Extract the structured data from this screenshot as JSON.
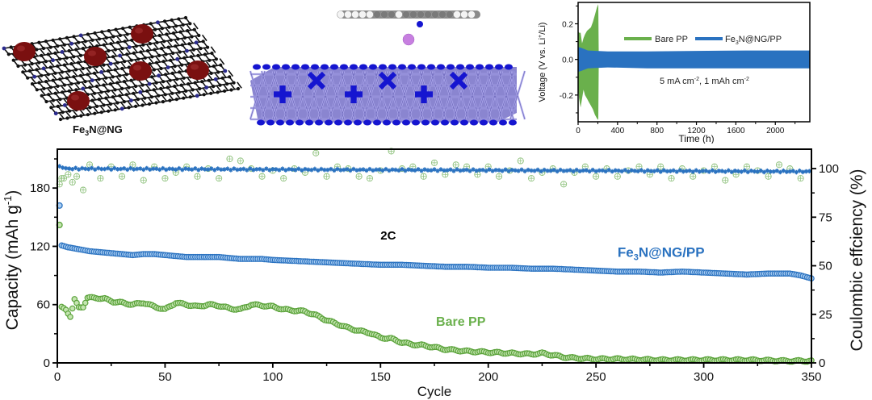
{
  "panels": {
    "left_schematic": {
      "label": "Fe3N@NG",
      "label_main": "Fe",
      "label_sub": "3",
      "label_rest": "N@NG",
      "sheet_color": "#111111",
      "nitrogen_color": "#2b2b8c",
      "particle_color": "#7a1010"
    },
    "middle_schematic": {
      "description": "Li atom between molecule and Fe3N slab",
      "li_color": "#c77fe0",
      "slab_color": "#8a85d0",
      "n_color": "#1515d0"
    }
  },
  "chart_data": [
    {
      "id": "inset",
      "type": "area",
      "title": "",
      "xlabel": "Time (h)",
      "ylabel": "Voltage (V vs. Li+/Li)",
      "ylabel_parts": {
        "pre": "Voltage (V vs. Li",
        "sup": "+",
        "post": "/Li)"
      },
      "xlim": [
        0,
        2350
      ],
      "ylim": [
        -0.35,
        0.32
      ],
      "xticks": [
        0,
        400,
        800,
        1200,
        1600,
        2000
      ],
      "xtick_labels": [
        "0",
        "400",
        "800",
        "1200",
        "1600",
        "2000"
      ],
      "yticks": [
        -0.2,
        0.0,
        0.2
      ],
      "ytick_labels": [
        "-0.2",
        "0.0",
        "0.2"
      ],
      "annotation": {
        "pre": "5 mA cm",
        "sup1": "-2",
        "mid": ", 1 mAh cm",
        "sup2": "-2"
      },
      "legend": {
        "placement": "top-center",
        "entries": [
          {
            "name": "Bare PP",
            "color": "#6ab04c"
          },
          {
            "name": "Fe3N@NG/PP",
            "name_main": "Fe",
            "name_sub": "3",
            "name_rest": "N@NG/PP",
            "color": "#2a72c0"
          }
        ]
      },
      "series": [
        {
          "name": "Bare PP",
          "color": "#6ab04c",
          "x": [
            0,
            10,
            25,
            40,
            55,
            70,
            90,
            110,
            130,
            150,
            170,
            190,
            205,
            210
          ],
          "upper": [
            0.16,
            0.15,
            0.15,
            0.09,
            0.12,
            0.14,
            0.16,
            0.17,
            0.18,
            0.21,
            0.25,
            0.29,
            0.31,
            0.0
          ],
          "lower": [
            -0.16,
            -0.22,
            -0.27,
            -0.22,
            -0.17,
            -0.2,
            -0.22,
            -0.24,
            -0.26,
            -0.28,
            -0.31,
            -0.33,
            -0.34,
            0.0
          ]
        },
        {
          "name": "Fe3N@NG/PP",
          "color": "#2a72c0",
          "x": [
            0,
            30,
            100,
            300,
            700,
            1200,
            1700,
            2350
          ],
          "upper": [
            0.07,
            0.065,
            0.05,
            0.045,
            0.045,
            0.048,
            0.05,
            0.05
          ],
          "lower": [
            -0.07,
            -0.065,
            -0.05,
            -0.045,
            -0.05,
            -0.05,
            -0.05,
            -0.05
          ]
        }
      ]
    },
    {
      "id": "main",
      "type": "scatter",
      "title": "",
      "xlabel": "Cycle",
      "ylabel_left": "Capacity (mAh g-1)",
      "ylabel_left_parts": {
        "pre": "Capacity (mAh g",
        "sup": "-1",
        "post": ")"
      },
      "ylabel_right": "Coulombic effciency (%)",
      "xlim": [
        0,
        350
      ],
      "ylim_left": [
        0,
        220
      ],
      "ylim_right": [
        0,
        110
      ],
      "xticks": [
        0,
        50,
        100,
        150,
        200,
        250,
        300,
        350
      ],
      "xtick_labels": [
        "0",
        "50",
        "100",
        "150",
        "200",
        "250",
        "300",
        "350"
      ],
      "yticks_left": [
        0,
        60,
        120,
        180
      ],
      "ytick_left_labels": [
        "0",
        "60",
        "120",
        "180"
      ],
      "yticks_right": [
        0,
        25,
        50,
        75,
        100
      ],
      "ytick_right_labels": [
        "0",
        "25",
        "50",
        "75",
        "100"
      ],
      "annotations": [
        {
          "text": "2C",
          "x": 150,
          "y": 127,
          "color": "#000000"
        },
        {
          "text": "Fe3N@NG/PP",
          "main": "Fe",
          "sub": "3",
          "rest": "N@NG/PP",
          "x": 290,
          "y": 109,
          "color": "#2a72c0"
        },
        {
          "text": "Bare PP",
          "x": 190,
          "y": 38,
          "color": "#6ab04c"
        }
      ],
      "series": [
        {
          "name": "Fe3N@NG/PP capacity",
          "axis": "left",
          "color": "#2a72c0",
          "marker": "circle",
          "x": [
            1,
            2,
            5,
            10,
            15,
            20,
            25,
            30,
            35,
            40,
            45,
            50,
            55,
            60,
            65,
            70,
            75,
            80,
            85,
            90,
            95,
            100,
            110,
            120,
            130,
            140,
            150,
            160,
            170,
            180,
            190,
            200,
            210,
            220,
            230,
            240,
            250,
            260,
            270,
            280,
            290,
            300,
            310,
            320,
            330,
            340,
            345,
            350
          ],
          "values": [
            162,
            121,
            119,
            117,
            115,
            114,
            113,
            112,
            111,
            112,
            112,
            111,
            110,
            109,
            109,
            109,
            109,
            108,
            107,
            107,
            107,
            106,
            105,
            104,
            103,
            102,
            101,
            101,
            100,
            99,
            99,
            98,
            98,
            97,
            97,
            96,
            95,
            94,
            94,
            93,
            94,
            93,
            92,
            91,
            92,
            92,
            90,
            87
          ]
        },
        {
          "name": "Bare PP capacity",
          "axis": "left",
          "color": "#6ab04c",
          "marker": "circle",
          "x": [
            1,
            2,
            4,
            6,
            7,
            8,
            10,
            12,
            14,
            18,
            22,
            26,
            30,
            35,
            40,
            45,
            50,
            55,
            60,
            65,
            70,
            75,
            80,
            85,
            90,
            95,
            100,
            105,
            110,
            115,
            120,
            125,
            130,
            135,
            140,
            145,
            150,
            155,
            160,
            165,
            170,
            175,
            180,
            190,
            200,
            210,
            220,
            225,
            230,
            235,
            240,
            250,
            260,
            280,
            300,
            320,
            340,
            350
          ],
          "values": [
            142,
            57,
            55,
            48,
            56,
            65,
            57,
            58,
            67,
            67,
            66,
            63,
            62,
            60,
            62,
            58,
            55,
            62,
            60,
            58,
            60,
            59,
            56,
            55,
            60,
            59,
            58,
            55,
            54,
            53,
            49,
            44,
            40,
            36,
            33,
            31,
            26,
            25,
            21,
            19,
            18,
            16,
            14,
            12,
            11,
            10,
            9,
            10,
            8,
            6,
            5,
            4,
            4,
            3,
            3,
            3,
            2,
            2
          ]
        },
        {
          "name": "Fe3N@NG/PP CE",
          "axis": "right",
          "color": "#2a72c0",
          "marker": "star",
          "x": [
            1,
            350
          ],
          "values": [
            100,
            98.5
          ],
          "note": "steady ~99% across all cycles"
        },
        {
          "name": "Bare PP CE",
          "axis": "right",
          "color": "#6ab04c",
          "marker": "circle-plus",
          "x": [
            1,
            2,
            3,
            5,
            7,
            9,
            12,
            15,
            20,
            25,
            30,
            35,
            40,
            45,
            50,
            55,
            60,
            65,
            70,
            75,
            80,
            85,
            90,
            95,
            100,
            105,
            110,
            115,
            120,
            125,
            130,
            135,
            140,
            145,
            150,
            155,
            160,
            165,
            170,
            175,
            180,
            185,
            190,
            195,
            200,
            205,
            210,
            215,
            220,
            225,
            230,
            235,
            240,
            245,
            250,
            255,
            260,
            265,
            270,
            275,
            280,
            285,
            290,
            295,
            300,
            305,
            310,
            315,
            320,
            325,
            330,
            335,
            340,
            345
          ],
          "values": [
            92,
            95,
            95,
            97,
            93,
            96,
            89,
            102,
            95,
            101,
            96,
            102,
            94,
            101,
            95,
            98,
            101,
            96,
            100,
            95,
            105,
            104,
            100,
            96,
            99,
            95,
            100,
            98,
            108,
            96,
            101,
            100,
            96,
            95,
            99,
            109,
            100,
            101,
            96,
            103,
            97,
            102,
            101,
            97,
            101,
            96,
            99,
            104,
            95,
            98,
            100,
            92,
            98,
            101,
            96,
            100,
            96,
            99,
            101,
            97,
            101,
            95,
            100,
            96,
            99,
            101,
            94,
            97,
            101,
            99,
            96,
            102,
            100,
            95
          ]
        }
      ]
    }
  ]
}
